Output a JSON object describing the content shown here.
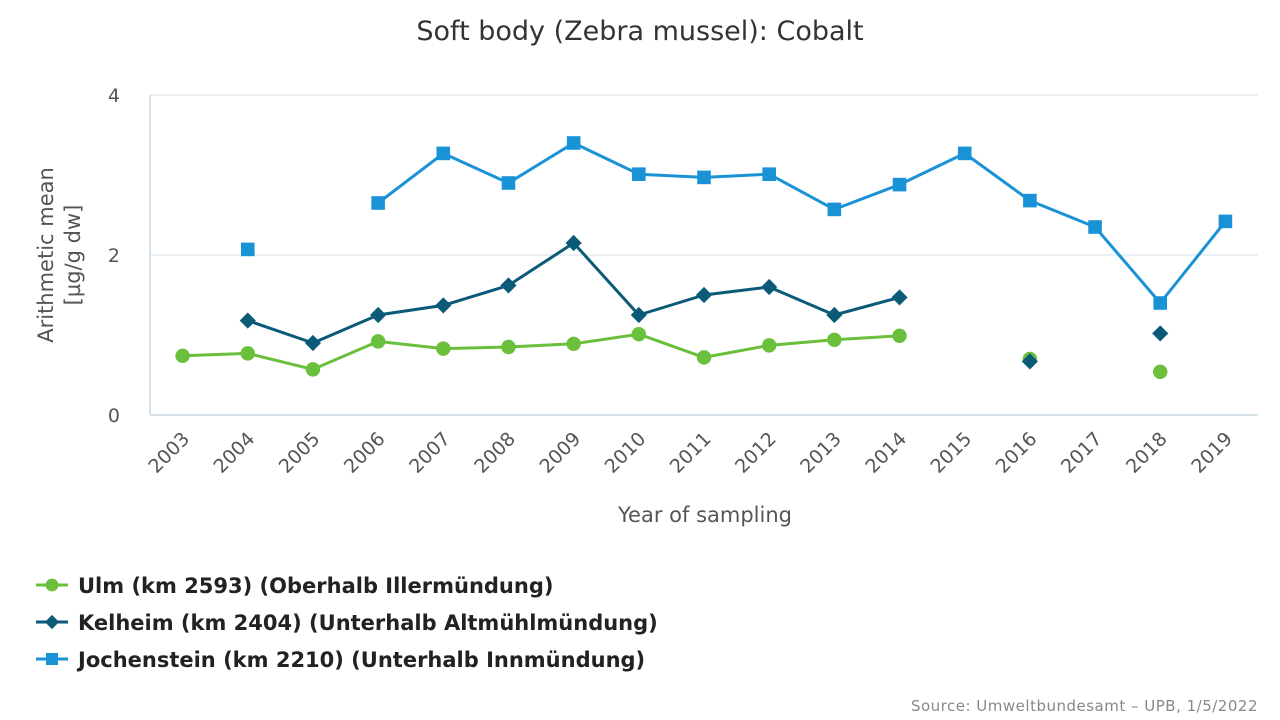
{
  "chart_data": {
    "type": "line",
    "title": "Soft body (Zebra mussel): Cobalt",
    "xlabel": "Year of sampling",
    "ylabel_lines": [
      "Arithmetic mean",
      "[µg/g dw]"
    ],
    "categories": [
      "2003",
      "2004",
      "2005",
      "2006",
      "2007",
      "2008",
      "2009",
      "2010",
      "2011",
      "2012",
      "2013",
      "2014",
      "2015",
      "2016",
      "2017",
      "2018",
      "2019"
    ],
    "ylim": [
      0,
      4
    ],
    "yticks": [
      0,
      2,
      4
    ],
    "grid": true,
    "legend_position": "bottom-left",
    "series": [
      {
        "name": "Ulm (km 2593) (Oberhalb Illermündung)",
        "color": "#6abf3b",
        "marker": "circle",
        "values": [
          0.74,
          0.77,
          0.57,
          0.92,
          0.83,
          0.85,
          0.89,
          1.01,
          0.72,
          0.87,
          0.94,
          0.99,
          null,
          0.7,
          null,
          0.54,
          null
        ]
      },
      {
        "name": "Kelheim (km 2404) (Unterhalb Altmühlmündung)",
        "color": "#0b5a78",
        "marker": "diamond",
        "values": [
          null,
          1.18,
          0.9,
          1.25,
          1.37,
          1.62,
          2.15,
          1.25,
          1.5,
          1.6,
          1.25,
          1.47,
          null,
          0.67,
          null,
          1.02,
          null
        ]
      },
      {
        "name": "Jochenstein (km 2210) (Unterhalb Innmündung)",
        "color": "#1a93d6",
        "marker": "square",
        "values": [
          null,
          2.07,
          null,
          2.65,
          3.27,
          2.9,
          3.4,
          3.01,
          2.97,
          3.01,
          2.57,
          2.88,
          3.27,
          2.68,
          2.35,
          1.4,
          2.42
        ]
      }
    ],
    "source": "Source: Umweltbundesamt – UPB, 1/5/2022"
  }
}
